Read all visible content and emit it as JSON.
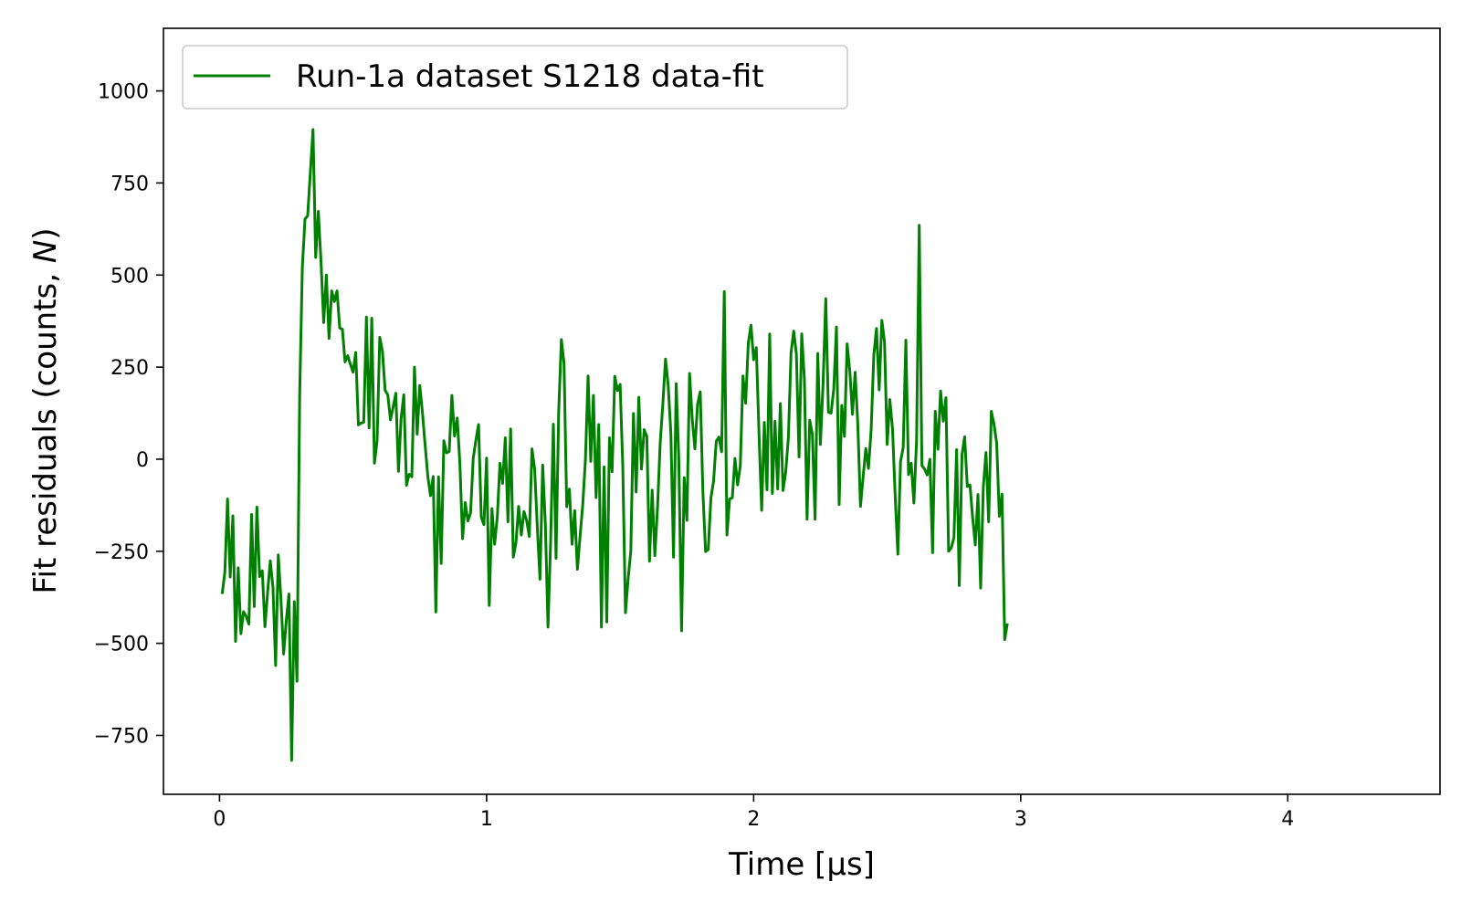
{
  "chart_data": {
    "type": "line",
    "title": "",
    "xlabel": "Time [µs]",
    "ylabel": "Fit residuals (counts, N)",
    "ylabel_parts": [
      "Fit residuals (counts, ",
      "N",
      ")"
    ],
    "xlim": [
      -0.21,
      4.57
    ],
    "ylim": [
      -910,
      1170
    ],
    "xticks": [
      0,
      1,
      2,
      3,
      4
    ],
    "xtick_labels": [
      "0",
      "1",
      "2",
      "3",
      "4"
    ],
    "yticks": [
      -750,
      -500,
      -250,
      0,
      250,
      500,
      750,
      1000
    ],
    "ytick_labels": [
      "−750",
      "−500",
      "−250",
      "0",
      "250",
      "500",
      "750",
      "1000"
    ],
    "grid": false,
    "legend_position": "top-left",
    "series": [
      {
        "name": "Run-1a dataset S1218 data-fit",
        "color": "#008000",
        "x_start": 0.01,
        "x_step": 0.01,
        "values": [
          -366,
          -306,
          -108,
          -320,
          -154,
          -495,
          -295,
          -474,
          -414,
          -427,
          -448,
          -150,
          -400,
          -130,
          -319,
          -303,
          -455,
          -362,
          -276,
          -347,
          -560,
          -260,
          -381,
          -529,
          -437,
          -366,
          -818,
          -387,
          -603,
          170,
          520,
          652,
          661,
          778,
          895,
          548,
          673,
          535,
          371,
          500,
          328,
          457,
          428,
          457,
          356,
          353,
          264,
          281,
          258,
          236,
          290,
          93,
          98,
          100,
          386,
          85,
          383,
          -11,
          50,
          331,
          293,
          187,
          175,
          107,
          141,
          179,
          -33,
          111,
          175,
          -71,
          -41,
          -48,
          250,
          68,
          200,
          125,
          37,
          -47,
          -99,
          -47,
          -415,
          -48,
          -283,
          50,
          17,
          21,
          173,
          63,
          112,
          -12,
          -216,
          -118,
          -168,
          -146,
          3,
          52,
          94,
          -157,
          -178,
          3,
          -397,
          -134,
          -231,
          -158,
          -11,
          -66,
          58,
          -170,
          82,
          -266,
          -227,
          -128,
          -206,
          -142,
          -167,
          -210,
          28,
          -27,
          -186,
          -326,
          -16,
          -175,
          -456,
          -218,
          95,
          -269,
          129,
          325,
          260,
          -129,
          -81,
          -231,
          -140,
          -299,
          -210,
          -124,
          -3,
          226,
          -6,
          173,
          -104,
          94,
          -456,
          -21,
          -442,
          58,
          -34,
          225,
          186,
          203,
          -20,
          -417,
          -325,
          -249,
          124,
          -89,
          168,
          -27,
          80,
          62,
          -277,
          -84,
          -262,
          -133,
          44,
          150,
          272,
          200,
          72,
          -266,
          205,
          -5,
          -466,
          -50,
          -166,
          233,
          109,
          28,
          149,
          183,
          -91,
          -251,
          -245,
          -105,
          -59,
          49,
          60,
          20,
          455,
          -206,
          -108,
          -105,
          2,
          -70,
          -18,
          226,
          152,
          315,
          364,
          270,
          303,
          70,
          -139,
          100,
          -83,
          340,
          -93,
          103,
          -81,
          151,
          -85,
          -35,
          58,
          289,
          348,
          286,
          6,
          340,
          217,
          -163,
          106,
          67,
          -163,
          287,
          40,
          206,
          436,
          128,
          125,
          191,
          359,
          -123,
          146,
          62,
          313,
          240,
          122,
          236,
          94,
          -128,
          -47,
          29,
          -25,
          81,
          283,
          355,
          188,
          377,
          318,
          40,
          162,
          82,
          -100,
          -258,
          -6,
          32,
          323,
          -42,
          -11,
          -119,
          50,
          635,
          -17,
          -27,
          -43,
          0,
          -254,
          130,
          27,
          185,
          103,
          167,
          -250,
          -241,
          -213,
          26,
          -343,
          12,
          61,
          -74,
          -70,
          -159,
          -233,
          -96,
          -350,
          -75,
          18,
          -170,
          130,
          95,
          43,
          -155,
          -95,
          -490,
          -446
        ]
      }
    ]
  }
}
